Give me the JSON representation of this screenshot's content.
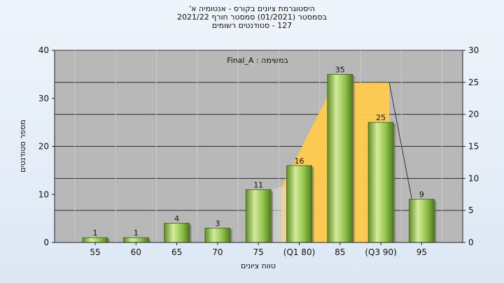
{
  "title_lines": [
    "היסטוגרמת ציונים בקורס - אנטומיה א'",
    "בסמסטר  (01/2021)  סמסטר חורף 2021/22",
    "127 - סטודנטים רשומים"
  ],
  "chart_data": {
    "type": "bar",
    "categories": [
      "55",
      "60",
      "65",
      "70",
      "75",
      "(Q1 80)",
      "85",
      "(Q3 90)",
      "95"
    ],
    "values": [
      1,
      1,
      4,
      3,
      11,
      16,
      35,
      25,
      9
    ],
    "xlabel": "טווח ציונים",
    "ylabel": "מספר סטודנטים",
    "ylim": [
      0,
      40
    ],
    "y2lim": [
      0,
      30
    ],
    "yticks": [
      0,
      10,
      20,
      30,
      40
    ],
    "y2ticks": [
      0,
      5,
      10,
      15,
      20,
      25,
      30
    ],
    "legend": "במשימה : Final_A",
    "quartile_box": {
      "from_category": "(Q1 80)",
      "to_category": "(Q3 90)",
      "color": "#ffc94d"
    },
    "grid": true,
    "colors": {
      "bar": "#8fc24a",
      "plot_bg": "#b8b8b8",
      "quartile": "#ffc94d"
    }
  }
}
